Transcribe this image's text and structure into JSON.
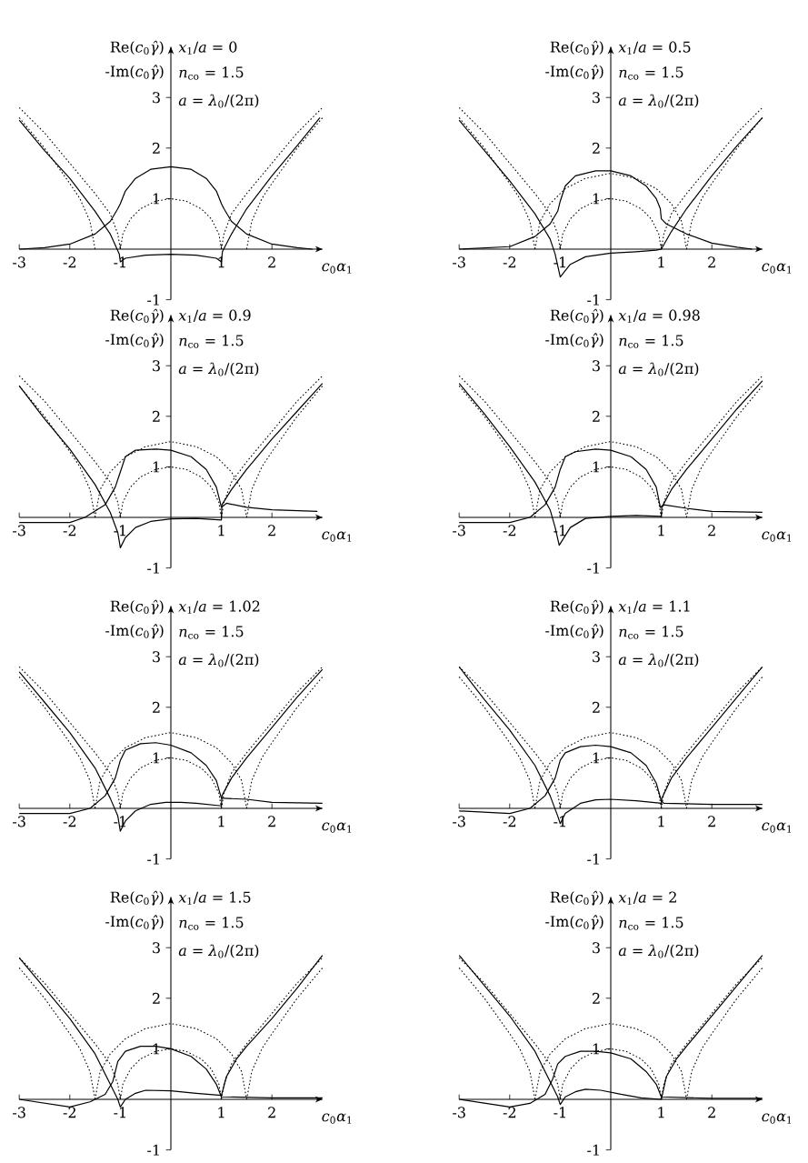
{
  "chart_data": [
    {
      "type": "line",
      "xlim": [
        -3,
        3
      ],
      "ylim": [
        -1,
        4
      ],
      "xticks": [
        -3,
        -2,
        -1,
        1,
        2
      ],
      "yticks": [
        -1,
        1,
        2,
        3
      ],
      "xlabel": "*c*$_{0}$*α*$_{1}$",
      "ylabel": "Re(*c*$_{0}$*γ̂*)",
      "annotations": [
        "-Im(*c*$_{0}$*γ̂*)",
        "*x*$_{1}$/*a* = 0",
        "*n*$_{co}$ = 1.5",
        "*a* = *λ*$_{0}$/(2π)"
      ],
      "series": [
        {
          "color": "#000000",
          "line_style": "solid",
          "x": [
            -3,
            -2.5,
            -2,
            -1.5,
            -1.2,
            -1.02,
            -1,
            -0.9,
            -0.5,
            0,
            0.5,
            0.9,
            1,
            1.02,
            1.2,
            1.5,
            2,
            2.5,
            2.95
          ],
          "values": [
            2.55,
            1.95,
            1.4,
            0.75,
            0.3,
            -0.1,
            -0.25,
            -0.18,
            -0.12,
            -0.1,
            -0.12,
            -0.18,
            -0.25,
            -0.05,
            0.3,
            0.8,
            1.45,
            2.05,
            2.6
          ]
        },
        {
          "color": "#000000",
          "line_style": "solid",
          "x": [
            -3,
            -2.5,
            -2,
            -1.5,
            -1.2,
            -1.05,
            -1,
            -0.9,
            -0.7,
            -0.4,
            0,
            0.4,
            0.7,
            0.9,
            1,
            1.05,
            1.2,
            1.5,
            2,
            2.5,
            2.8
          ],
          "values": [
            0,
            0.03,
            0.1,
            0.3,
            0.55,
            0.8,
            0.9,
            1.15,
            1.4,
            1.58,
            1.63,
            1.58,
            1.4,
            1.15,
            0.9,
            0.8,
            0.55,
            0.3,
            0.1,
            0.03,
            0
          ]
        },
        {
          "color": "#000000",
          "line_style": "dotted",
          "x": [
            -3,
            -2.5,
            -2,
            -1.5,
            -1.2,
            -1.05,
            -1,
            0,
            1,
            1.05,
            1.2,
            1.5,
            2,
            2.5,
            3
          ],
          "values": [
            2.8,
            2.3,
            1.7,
            1.1,
            0.7,
            0.3,
            0,
            null,
            0,
            0.3,
            0.7,
            1.1,
            1.7,
            2.3,
            2.8
          ]
        },
        {
          "color": "#000000",
          "line_style": "dotted",
          "x": [
            -3,
            -2.5,
            -2,
            -1.8,
            -1.6,
            -1.5,
            0,
            1.5,
            1.6,
            1.8,
            2,
            2.5,
            3
          ],
          "values": [
            2.6,
            2.0,
            1.3,
            1.0,
            0.55,
            0,
            null,
            0,
            0.55,
            1.0,
            1.3,
            2.0,
            2.6
          ]
        },
        {
          "color": "#000000",
          "line_style": "dotted",
          "x": [
            -1,
            -0.95,
            -0.8,
            -0.6,
            -0.3,
            0,
            0.3,
            0.6,
            0.8,
            0.95,
            1
          ],
          "values": [
            0,
            0.3,
            0.6,
            0.8,
            0.95,
            1,
            0.95,
            0.8,
            0.6,
            0.3,
            0
          ]
        }
      ]
    },
    {
      "type": "line",
      "xlim": [
        -3,
        3
      ],
      "ylim": [
        -1,
        4
      ],
      "xticks": [
        -3,
        -2,
        -1,
        1,
        2
      ],
      "yticks": [
        -1,
        1,
        2,
        3
      ],
      "xlabel": "*c*$_{0}$*α*$_{1}$",
      "ylabel": "Re(*c*$_{0}$*γ̂*)",
      "annotations": [
        "-Im(*c*$_{0}$*γ̂*)",
        "*x*$_{1}$/*a* = 0.5",
        "*n*$_{co}$ = 1.5",
        "*a* = *λ*$_{0}$/(2π)"
      ],
      "series": [
        {
          "color": "#000000",
          "line_style": "solid",
          "x": [
            -3,
            -2.5,
            -2,
            -1.5,
            -1.2,
            -1.1,
            -1,
            -0.8,
            -0.5,
            0,
            0.5,
            0.9,
            1,
            1.2,
            1.5,
            2,
            2.5,
            3
          ],
          "values": [
            2.55,
            1.95,
            1.35,
            0.7,
            0.2,
            -0.1,
            -0.55,
            -0.3,
            -0.15,
            -0.08,
            -0.05,
            -0.02,
            0,
            0.35,
            0.8,
            1.45,
            2.05,
            2.6
          ]
        },
        {
          "color": "#000000",
          "line_style": "solid",
          "x": [
            -3,
            -2,
            -1.5,
            -1.2,
            -1.05,
            -1,
            -0.9,
            -0.7,
            -0.3,
            0,
            0.4,
            0.7,
            0.9,
            0.98,
            1,
            1.1,
            1.5,
            2,
            2.5,
            2.8
          ],
          "values": [
            0,
            0.05,
            0.25,
            0.5,
            0.75,
            0.95,
            1.25,
            1.45,
            1.55,
            1.55,
            1.45,
            1.25,
            1.0,
            0.8,
            0.6,
            0.5,
            0.3,
            0.12,
            0.04,
            0
          ]
        },
        {
          "color": "#000000",
          "line_style": "dotted",
          "x": [
            -3,
            -2.5,
            -2,
            -1.5,
            -1.2,
            -1.05,
            -1,
            0,
            1,
            1.05,
            1.2,
            1.5,
            2,
            2.5,
            3
          ],
          "values": [
            2.8,
            2.3,
            1.7,
            1.1,
            0.7,
            0.3,
            0,
            null,
            0,
            0.3,
            0.7,
            1.1,
            1.7,
            2.3,
            2.8
          ]
        },
        {
          "color": "#000000",
          "line_style": "dotted",
          "x": [
            -3,
            -2.5,
            -2,
            -1.8,
            -1.6,
            -1.5,
            0,
            1.5,
            1.6,
            1.8,
            2,
            2.5,
            3
          ],
          "values": [
            2.6,
            2.0,
            1.3,
            1.0,
            0.55,
            0,
            null,
            0,
            0.55,
            1.0,
            1.3,
            2.0,
            2.6
          ]
        },
        {
          "color": "#000000",
          "line_style": "dotted",
          "x": [
            -1,
            -0.95,
            -0.8,
            -0.6,
            -0.3,
            0,
            0.3,
            0.6,
            0.8,
            0.95,
            1
          ],
          "values": [
            0,
            0.3,
            0.6,
            0.8,
            0.95,
            1,
            0.95,
            0.8,
            0.6,
            0.3,
            0
          ]
        },
        {
          "color": "#000000",
          "line_style": "dotted",
          "x": [
            -1.5,
            -1.4,
            -1.2,
            -0.9,
            -0.5,
            0,
            0.5,
            0.9,
            1.2,
            1.4,
            1.5
          ],
          "values": [
            0,
            0.55,
            0.9,
            1.2,
            1.4,
            1.5,
            1.4,
            1.2,
            0.9,
            0.55,
            0
          ]
        }
      ]
    },
    {
      "type": "line",
      "xlim": [
        -3,
        3
      ],
      "ylim": [
        -1,
        4
      ],
      "xticks": [
        -3,
        -2,
        -1,
        1,
        2
      ],
      "yticks": [
        -1,
        1,
        2,
        3
      ],
      "xlabel": "*c*$_{0}$*α*$_{1}$",
      "ylabel": "Re(*c*$_{0}$*γ̂*)",
      "annotations": [
        "-Im(*c*$_{0}$*γ̂*)",
        "*x*$_{1}$/*a* = 0.9",
        "*n*$_{co}$ = 1.5",
        "*a* = *λ*$_{0}$/(2π)"
      ],
      "series": [
        {
          "color": "#000000",
          "line_style": "solid",
          "x": [
            -3,
            -2.5,
            -2,
            -1.5,
            -1.2,
            -1.05,
            -1,
            -0.9,
            -0.7,
            -0.4,
            0,
            0.5,
            1,
            1.01,
            1.2,
            1.5,
            2,
            2.5,
            3
          ],
          "values": [
            2.6,
            1.95,
            1.35,
            0.65,
            0.1,
            -0.3,
            -0.6,
            -0.4,
            -0.2,
            -0.08,
            -0.03,
            -0.02,
            -0.05,
            0.25,
            0.55,
            0.95,
            1.55,
            2.1,
            2.65
          ]
        },
        {
          "color": "#000000",
          "line_style": "solid",
          "x": [
            -3,
            -2,
            -1.7,
            -1.3,
            -1.1,
            -1,
            -0.9,
            -0.7,
            -0.3,
            0,
            0.4,
            0.7,
            0.9,
            1,
            1.1,
            1.5,
            2,
            2.9
          ],
          "values": [
            -0.1,
            -0.1,
            0,
            0.25,
            0.6,
            0.9,
            1.2,
            1.33,
            1.35,
            1.33,
            1.2,
            0.95,
            0.6,
            0.2,
            0.28,
            0.2,
            0.15,
            0.12
          ]
        },
        {
          "color": "#000000",
          "line_style": "dotted",
          "x": [
            -3,
            -2.5,
            -2,
            -1.5,
            -1.2,
            -1.05,
            -1,
            0,
            1,
            1.05,
            1.2,
            1.5,
            2,
            2.5,
            3
          ],
          "values": [
            2.8,
            2.3,
            1.7,
            1.1,
            0.7,
            0.3,
            0,
            null,
            0,
            0.3,
            0.7,
            1.1,
            1.7,
            2.3,
            2.8
          ]
        },
        {
          "color": "#000000",
          "line_style": "dotted",
          "x": [
            -3,
            -2.5,
            -2,
            -1.8,
            -1.6,
            -1.5,
            0,
            1.5,
            1.6,
            1.8,
            2,
            2.5,
            3
          ],
          "values": [
            2.6,
            2.0,
            1.3,
            1.0,
            0.55,
            0,
            null,
            0,
            0.55,
            1.0,
            1.3,
            2.0,
            2.6
          ]
        },
        {
          "color": "#000000",
          "line_style": "dotted",
          "x": [
            -1,
            -0.95,
            -0.8,
            -0.6,
            -0.3,
            0,
            0.3,
            0.6,
            0.8,
            0.95,
            1
          ],
          "values": [
            0,
            0.3,
            0.6,
            0.8,
            0.95,
            1,
            0.95,
            0.8,
            0.6,
            0.3,
            0
          ]
        },
        {
          "color": "#000000",
          "line_style": "dotted",
          "x": [
            -1.5,
            -1.4,
            -1.2,
            -0.9,
            -0.5,
            0,
            0.5,
            0.9,
            1.2,
            1.4,
            1.5
          ],
          "values": [
            0,
            0.55,
            0.9,
            1.2,
            1.4,
            1.5,
            1.4,
            1.2,
            0.9,
            0.55,
            0
          ]
        }
      ]
    },
    {
      "type": "line",
      "xlim": [
        -3,
        3
      ],
      "ylim": [
        -1,
        4
      ],
      "xticks": [
        -3,
        -2,
        -1,
        1,
        2
      ],
      "yticks": [
        -1,
        1,
        2,
        3
      ],
      "xlabel": "*c*$_{0}$*α*$_{1}$",
      "ylabel": "Re(*c*$_{0}$*γ̂*)",
      "annotations": [
        "-Im(*c*$_{0}$*γ̂*)",
        "*x*$_{1}$/*a* = 0.98",
        "*n*$_{co}$ = 1.5",
        "*a* = *λ*$_{0}$/(2π)"
      ],
      "series": [
        {
          "color": "#000000",
          "line_style": "solid",
          "x": [
            -3,
            -2.5,
            -2,
            -1.5,
            -1.2,
            -1.1,
            -1.02,
            -0.8,
            -0.5,
            0,
            0.5,
            1,
            1.01,
            1.2,
            1.5,
            2,
            2.5,
            3
          ],
          "values": [
            2.65,
            2.05,
            1.4,
            0.7,
            0.15,
            -0.2,
            -0.55,
            -0.2,
            -0.02,
            0.02,
            0.04,
            0.02,
            0.2,
            0.55,
            0.95,
            1.55,
            2.15,
            2.7
          ]
        },
        {
          "color": "#000000",
          "line_style": "solid",
          "x": [
            -3,
            -2,
            -1.6,
            -1.3,
            -1.1,
            -1,
            -0.9,
            -0.7,
            -0.3,
            0,
            0.4,
            0.7,
            0.9,
            0.98,
            1.05,
            1.5,
            2,
            3
          ],
          "values": [
            -0.1,
            -0.1,
            0,
            0.25,
            0.6,
            0.95,
            1.2,
            1.3,
            1.35,
            1.33,
            1.2,
            0.95,
            0.6,
            0.2,
            0.25,
            0.18,
            0.12,
            0.1
          ]
        },
        {
          "color": "#000000",
          "line_style": "dotted",
          "x": [
            -3,
            -2.5,
            -2,
            -1.5,
            -1.2,
            -1.05,
            -1,
            0,
            1,
            1.05,
            1.2,
            1.5,
            2,
            2.5,
            3
          ],
          "values": [
            2.8,
            2.3,
            1.7,
            1.1,
            0.7,
            0.3,
            0,
            null,
            0,
            0.3,
            0.7,
            1.1,
            1.7,
            2.3,
            2.8
          ]
        },
        {
          "color": "#000000",
          "line_style": "dotted",
          "x": [
            -3,
            -2.5,
            -2,
            -1.8,
            -1.6,
            -1.5,
            0,
            1.5,
            1.6,
            1.8,
            2,
            2.5,
            3
          ],
          "values": [
            2.6,
            2.0,
            1.3,
            1.0,
            0.55,
            0,
            null,
            0,
            0.55,
            1.0,
            1.3,
            2.0,
            2.6
          ]
        },
        {
          "color": "#000000",
          "line_style": "dotted",
          "x": [
            -1,
            -0.95,
            -0.8,
            -0.6,
            -0.3,
            0,
            0.3,
            0.6,
            0.8,
            0.95,
            1
          ],
          "values": [
            0,
            0.3,
            0.6,
            0.8,
            0.95,
            1,
            0.95,
            0.8,
            0.6,
            0.3,
            0
          ]
        },
        {
          "color": "#000000",
          "line_style": "dotted",
          "x": [
            -1.5,
            -1.4,
            -1.2,
            -0.9,
            -0.5,
            0,
            0.5,
            0.9,
            1.2,
            1.4,
            1.5
          ],
          "values": [
            0,
            0.55,
            0.9,
            1.2,
            1.4,
            1.5,
            1.4,
            1.2,
            0.9,
            0.55,
            0
          ]
        }
      ]
    },
    {
      "type": "line",
      "xlim": [
        -3,
        3
      ],
      "ylim": [
        -1,
        4
      ],
      "xticks": [
        -3,
        -2,
        -1,
        1,
        2
      ],
      "yticks": [
        -1,
        1,
        2,
        3
      ],
      "xlabel": "*c*$_{0}$*α*$_{1}$",
      "ylabel": "Re(*c*$_{0}$*γ̂*)",
      "annotations": [
        "-Im(*c*$_{0}$*γ̂*)",
        "*x*$_{1}$/*a* = 1.02",
        "*n*$_{co}$ = 1.5",
        "*a* = *λ*$_{0}$/(2π)"
      ],
      "series": [
        {
          "color": "#000000",
          "line_style": "solid",
          "x": [
            -3,
            -2.5,
            -2,
            -1.5,
            -1.2,
            -1.05,
            -1,
            -0.9,
            -0.7,
            -0.4,
            -0.1,
            0.2,
            0.5,
            1,
            1.01,
            1.2,
            1.5,
            2,
            2.5,
            3
          ],
          "values": [
            2.7,
            2.1,
            1.5,
            0.8,
            0.2,
            -0.15,
            -0.45,
            -0.25,
            -0.05,
            0.08,
            0.12,
            0.12,
            0.1,
            0.05,
            0.25,
            0.6,
            1.0,
            1.6,
            2.2,
            2.75
          ]
        },
        {
          "color": "#000000",
          "line_style": "solid",
          "x": [
            -3,
            -2,
            -1.6,
            -1.3,
            -1.1,
            -1,
            -0.9,
            -0.6,
            -0.3,
            0,
            0.4,
            0.7,
            0.9,
            1,
            1.05,
            1.5,
            2,
            3
          ],
          "values": [
            -0.1,
            -0.1,
            0,
            0.25,
            0.6,
            0.95,
            1.15,
            1.28,
            1.3,
            1.25,
            1.1,
            0.85,
            0.55,
            0.2,
            0.2,
            0.18,
            0.12,
            0.1
          ]
        },
        {
          "color": "#000000",
          "line_style": "dotted",
          "x": [
            -3,
            -2.5,
            -2,
            -1.5,
            -1.2,
            -1.05,
            -1,
            0,
            1,
            1.05,
            1.2,
            1.5,
            2,
            2.5,
            3
          ],
          "values": [
            2.8,
            2.3,
            1.7,
            1.1,
            0.7,
            0.3,
            0,
            null,
            0,
            0.3,
            0.7,
            1.1,
            1.7,
            2.3,
            2.8
          ]
        },
        {
          "color": "#000000",
          "line_style": "dotted",
          "x": [
            -3,
            -2.5,
            -2,
            -1.8,
            -1.6,
            -1.5,
            0,
            1.5,
            1.6,
            1.8,
            2,
            2.5,
            3
          ],
          "values": [
            2.6,
            2.0,
            1.3,
            1.0,
            0.55,
            0,
            null,
            0,
            0.55,
            1.0,
            1.3,
            2.0,
            2.6
          ]
        },
        {
          "color": "#000000",
          "line_style": "dotted",
          "x": [
            -1,
            -0.95,
            -0.8,
            -0.6,
            -0.3,
            0,
            0.3,
            0.6,
            0.8,
            0.95,
            1
          ],
          "values": [
            0,
            0.3,
            0.6,
            0.8,
            0.95,
            1,
            0.95,
            0.8,
            0.6,
            0.3,
            0
          ]
        },
        {
          "color": "#000000",
          "line_style": "dotted",
          "x": [
            -1.5,
            -1.4,
            -1.2,
            -0.9,
            -0.5,
            0,
            0.5,
            0.9,
            1.2,
            1.4,
            1.5
          ],
          "values": [
            0,
            0.55,
            0.9,
            1.2,
            1.4,
            1.5,
            1.4,
            1.2,
            0.9,
            0.55,
            0
          ]
        }
      ]
    },
    {
      "type": "line",
      "xlim": [
        -3,
        3
      ],
      "ylim": [
        -1,
        4
      ],
      "xticks": [
        -3,
        -2,
        -1,
        1,
        2
      ],
      "yticks": [
        -1,
        1,
        2,
        3
      ],
      "xlabel": "*c*$_{0}$*α*$_{1}$",
      "ylabel": "Re(*c*$_{0}$*γ̂*)",
      "annotations": [
        "-Im(*c*$_{0}$*γ̂*)",
        "*x*$_{1}$/*a* = 1.1",
        "*n*$_{co}$ = 1.5",
        "*a* = *λ*$_{0}$/(2π)"
      ],
      "series": [
        {
          "color": "#000000",
          "line_style": "solid",
          "x": [
            -3,
            -2.5,
            -2,
            -1.5,
            -1.2,
            -1.05,
            -1,
            -0.9,
            -0.6,
            -0.3,
            0,
            0.5,
            1,
            1.01,
            1.2,
            1.5,
            2,
            2.5,
            3
          ],
          "values": [
            2.8,
            2.15,
            1.55,
            0.85,
            0.25,
            -0.15,
            -0.3,
            -0.1,
            0.1,
            0.17,
            0.18,
            0.15,
            0.1,
            0.2,
            0.6,
            1.0,
            1.6,
            2.2,
            2.8
          ]
        },
        {
          "color": "#000000",
          "line_style": "solid",
          "x": [
            -3,
            -2,
            -1.6,
            -1.3,
            -1.1,
            -1,
            -0.9,
            -0.6,
            -0.3,
            0,
            0.4,
            0.7,
            0.9,
            1,
            1.05,
            2,
            3
          ],
          "values": [
            -0.05,
            -0.1,
            0,
            0.25,
            0.6,
            0.95,
            1.1,
            1.22,
            1.25,
            1.22,
            1.1,
            0.85,
            0.5,
            0.15,
            0.1,
            0.08,
            0.08
          ]
        },
        {
          "color": "#000000",
          "line_style": "dotted",
          "x": [
            -3,
            -2.5,
            -2,
            -1.5,
            -1.2,
            -1.05,
            -1,
            0,
            1,
            1.05,
            1.2,
            1.5,
            2,
            2.5,
            3
          ],
          "values": [
            2.8,
            2.3,
            1.7,
            1.1,
            0.7,
            0.3,
            0,
            null,
            0,
            0.3,
            0.7,
            1.1,
            1.7,
            2.3,
            2.8
          ]
        },
        {
          "color": "#000000",
          "line_style": "dotted",
          "x": [
            -3,
            -2.5,
            -2,
            -1.8,
            -1.6,
            -1.5,
            0,
            1.5,
            1.6,
            1.8,
            2,
            2.5,
            3
          ],
          "values": [
            2.6,
            2.0,
            1.3,
            1.0,
            0.55,
            0,
            null,
            0,
            0.55,
            1.0,
            1.3,
            2.0,
            2.6
          ]
        },
        {
          "color": "#000000",
          "line_style": "dotted",
          "x": [
            -1,
            -0.95,
            -0.8,
            -0.6,
            -0.3,
            0,
            0.3,
            0.6,
            0.8,
            0.95,
            1
          ],
          "values": [
            0,
            0.3,
            0.6,
            0.8,
            0.95,
            1,
            0.95,
            0.8,
            0.6,
            0.3,
            0
          ]
        },
        {
          "color": "#000000",
          "line_style": "dotted",
          "x": [
            -1.5,
            -1.4,
            -1.2,
            -0.9,
            -0.5,
            0,
            0.5,
            0.9,
            1.2,
            1.4,
            1.5
          ],
          "values": [
            0,
            0.55,
            0.9,
            1.2,
            1.4,
            1.5,
            1.4,
            1.2,
            0.9,
            0.55,
            0
          ]
        }
      ]
    },
    {
      "type": "line",
      "xlim": [
        -3,
        3
      ],
      "ylim": [
        -1,
        4
      ],
      "xticks": [
        -3,
        -2,
        -1,
        1,
        2
      ],
      "yticks": [
        -1,
        1,
        2,
        3
      ],
      "xlabel": "*c*$_{0}$*α*$_{1}$",
      "ylabel": "Re(*c*$_{0}$*γ̂*)",
      "annotations": [
        "-Im(*c*$_{0}$*γ̂*)",
        "*x*$_{1}$/*a* = 1.5",
        "*n*$_{co}$ = 1.5",
        "*a* = *λ*$_{0}$/(2π)"
      ],
      "series": [
        {
          "color": "#000000",
          "line_style": "solid",
          "x": [
            -3,
            -2.5,
            -2,
            -1.5,
            -1.2,
            -1.05,
            -1,
            -0.9,
            -0.7,
            -0.5,
            0,
            0.5,
            1,
            1.1,
            1.3,
            1.5,
            2,
            2.5,
            3
          ],
          "values": [
            2.8,
            2.2,
            1.6,
            0.9,
            0.3,
            0.0,
            -0.15,
            0.0,
            0.12,
            0.18,
            0.17,
            0.12,
            0.08,
            0.45,
            0.8,
            1.05,
            1.6,
            2.2,
            2.85
          ]
        },
        {
          "color": "#000000",
          "line_style": "solid",
          "x": [
            -3,
            -2,
            -1.6,
            -1.3,
            -1.15,
            -1.05,
            -0.9,
            -0.6,
            -0.3,
            0,
            0.4,
            0.7,
            0.9,
            1,
            2,
            3
          ],
          "values": [
            0,
            -0.15,
            -0.05,
            0.1,
            0.35,
            0.75,
            0.95,
            1.05,
            1.05,
            1.0,
            0.85,
            0.6,
            0.3,
            0.05,
            0.03,
            0.03
          ]
        },
        {
          "color": "#000000",
          "line_style": "dotted",
          "x": [
            -3,
            -2.5,
            -2,
            -1.5,
            -1.2,
            -1.05,
            -1,
            0,
            1,
            1.05,
            1.2,
            1.5,
            2,
            2.5,
            3
          ],
          "values": [
            2.8,
            2.3,
            1.7,
            1.1,
            0.7,
            0.3,
            0,
            null,
            0,
            0.3,
            0.7,
            1.1,
            1.7,
            2.3,
            2.8
          ]
        },
        {
          "color": "#000000",
          "line_style": "dotted",
          "x": [
            -3,
            -2.5,
            -2,
            -1.8,
            -1.6,
            -1.5,
            0,
            1.5,
            1.6,
            1.8,
            2,
            2.5,
            3
          ],
          "values": [
            2.6,
            2.0,
            1.3,
            1.0,
            0.55,
            0,
            null,
            0,
            0.55,
            1.0,
            1.3,
            2.0,
            2.6
          ]
        },
        {
          "color": "#000000",
          "line_style": "dotted",
          "x": [
            -1,
            -0.95,
            -0.8,
            -0.6,
            -0.3,
            0,
            0.3,
            0.6,
            0.8,
            0.95,
            1
          ],
          "values": [
            0,
            0.3,
            0.6,
            0.8,
            0.95,
            1,
            0.95,
            0.8,
            0.6,
            0.3,
            0
          ]
        },
        {
          "color": "#000000",
          "line_style": "dotted",
          "x": [
            -1.5,
            -1.4,
            -1.2,
            -0.9,
            -0.5,
            0,
            0.5,
            0.9,
            1.2,
            1.4,
            1.5
          ],
          "values": [
            0,
            0.55,
            0.9,
            1.2,
            1.4,
            1.5,
            1.4,
            1.2,
            0.9,
            0.55,
            0
          ]
        }
      ]
    },
    {
      "type": "line",
      "xlim": [
        -3,
        3
      ],
      "ylim": [
        -1,
        4
      ],
      "xticks": [
        -3,
        -2,
        -1,
        1,
        2
      ],
      "yticks": [
        -1,
        1,
        2,
        3
      ],
      "xlabel": "*c*$_{0}$*α*$_{1}$",
      "ylabel": "Re(*c*$_{0}$*γ̂*)",
      "annotations": [
        "-Im(*c*$_{0}$*γ̂*)",
        "*x*$_{1}$/*a* = 2",
        "*n*$_{co}$ = 1.5",
        "*a* = *λ*$_{0}$/(2π)"
      ],
      "series": [
        {
          "color": "#000000",
          "line_style": "solid",
          "x": [
            -3,
            -2.5,
            -2,
            -1.5,
            -1.2,
            -1.05,
            -1,
            -0.9,
            -0.7,
            -0.5,
            -0.2,
            0.2,
            0.6,
            1,
            1.1,
            1.3,
            1.5,
            2,
            2.5,
            3
          ],
          "values": [
            2.85,
            2.25,
            1.65,
            0.95,
            0.35,
            0.05,
            -0.1,
            0.05,
            0.15,
            0.2,
            0.18,
            0.1,
            0.03,
            0.0,
            0.45,
            0.8,
            1.05,
            1.65,
            2.25,
            2.85
          ]
        },
        {
          "color": "#000000",
          "line_style": "solid",
          "x": [
            -3,
            -2,
            -1.6,
            -1.3,
            -1.15,
            -1.05,
            -0.9,
            -0.6,
            -0.3,
            0,
            0.4,
            0.7,
            0.9,
            1,
            2,
            3
          ],
          "values": [
            0,
            -0.15,
            -0.08,
            0.1,
            0.4,
            0.7,
            0.85,
            0.95,
            0.95,
            0.92,
            0.8,
            0.55,
            0.3,
            0.05,
            0.02,
            0.02
          ]
        },
        {
          "color": "#000000",
          "line_style": "dotted",
          "x": [
            -3,
            -2.5,
            -2,
            -1.5,
            -1.2,
            -1.05,
            -1,
            0,
            1,
            1.05,
            1.2,
            1.5,
            2,
            2.5,
            3
          ],
          "values": [
            2.8,
            2.3,
            1.7,
            1.1,
            0.7,
            0.3,
            0,
            null,
            0,
            0.3,
            0.7,
            1.1,
            1.7,
            2.3,
            2.8
          ]
        },
        {
          "color": "#000000",
          "line_style": "dotted",
          "x": [
            -3,
            -2.5,
            -2,
            -1.8,
            -1.6,
            -1.5,
            0,
            1.5,
            1.6,
            1.8,
            2,
            2.5,
            3
          ],
          "values": [
            2.6,
            2.0,
            1.3,
            1.0,
            0.55,
            0,
            null,
            0,
            0.55,
            1.0,
            1.3,
            2.0,
            2.6
          ]
        },
        {
          "color": "#000000",
          "line_style": "dotted",
          "x": [
            -1,
            -0.95,
            -0.8,
            -0.6,
            -0.3,
            0,
            0.3,
            0.6,
            0.8,
            0.95,
            1
          ],
          "values": [
            0,
            0.3,
            0.6,
            0.8,
            0.95,
            1,
            0.95,
            0.8,
            0.6,
            0.3,
            0
          ]
        },
        {
          "color": "#000000",
          "line_style": "dotted",
          "x": [
            -1.5,
            -1.4,
            -1.2,
            -0.9,
            -0.5,
            0,
            0.5,
            0.9,
            1.2,
            1.4,
            1.5
          ],
          "values": [
            0,
            0.55,
            0.9,
            1.2,
            1.4,
            1.5,
            1.4,
            1.2,
            0.9,
            0.55,
            0
          ]
        }
      ]
    }
  ]
}
